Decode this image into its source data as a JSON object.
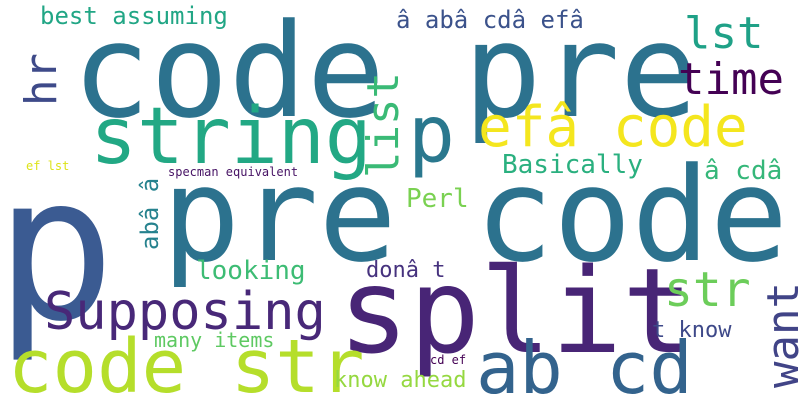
{
  "words": [
    {
      "text": "p",
      "color": "#3b5b92"
    },
    {
      "text": "pre code",
      "color": "#2c728e"
    },
    {
      "text": "code pre",
      "color": "#2c728e"
    },
    {
      "text": "split",
      "color": "#482576"
    },
    {
      "text": "code str",
      "color": "#b5de2b"
    },
    {
      "text": "ab cd",
      "color": "#33638d"
    },
    {
      "text": "string",
      "color": "#22a884"
    },
    {
      "text": "p",
      "color": "#2a788e"
    },
    {
      "text": "efâ code",
      "color": "#f4e61e"
    },
    {
      "text": "Supposing",
      "color": "#482878"
    },
    {
      "text": "time",
      "color": "#440154"
    },
    {
      "text": "lst",
      "color": "#1fa187"
    },
    {
      "text": "list",
      "color": "#3aba76"
    },
    {
      "text": "hr",
      "color": "#3e4a89"
    },
    {
      "text": "str",
      "color": "#6ccd5a"
    },
    {
      "text": "want",
      "color": "#414487"
    },
    {
      "text": "Basically",
      "color": "#2ab07f"
    },
    {
      "text": "â cdâ",
      "color": "#35b779"
    },
    {
      "text": "Perl",
      "color": "#7ad151"
    },
    {
      "text": "best assuming",
      "color": "#21a685"
    },
    {
      "text": "â abâ cdâ efâ",
      "color": "#3b528b"
    },
    {
      "text": "abâ â",
      "color": "#26828e"
    },
    {
      "text": "looking",
      "color": "#3dbc74"
    },
    {
      "text": "donâ t",
      "color": "#46327e"
    },
    {
      "text": "t know",
      "color": "#3e4989"
    },
    {
      "text": "many items",
      "color": "#5ec962"
    },
    {
      "text": "know ahead",
      "color": "#95d840"
    },
    {
      "text": "specman equivalent",
      "color": "#471365"
    },
    {
      "text": "cd ef",
      "color": "#440154"
    },
    {
      "text": "ef lst",
      "color": "#dde318"
    }
  ]
}
